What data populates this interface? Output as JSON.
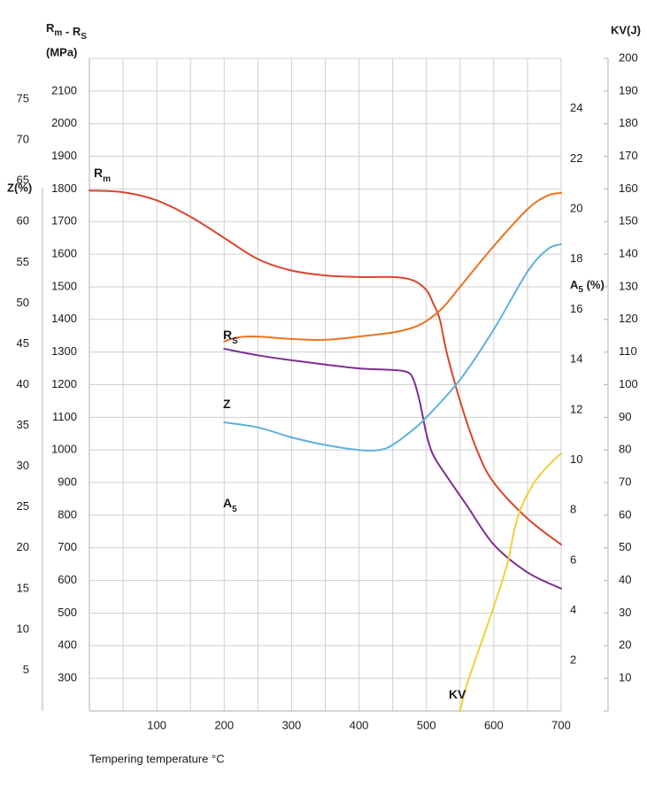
{
  "chart_data": {
    "type": "line",
    "xlabel": "Tempering temperature °C",
    "xlim": [
      0,
      700
    ],
    "x_ticks": [
      "100",
      "200",
      "300",
      "400",
      "500",
      "600",
      "700"
    ],
    "grid": true,
    "axes": {
      "rm_rs": {
        "label_main": "R",
        "label_sub1": "m",
        "label_mid": " - R",
        "label_sub2": "S",
        "label_unit": "(MPa)",
        "range": [
          200,
          2200
        ],
        "ticks": [
          "300",
          "400",
          "500",
          "600",
          "700",
          "800",
          "900",
          "1000",
          "1100",
          "1200",
          "1300",
          "1400",
          "1500",
          "1600",
          "1700",
          "1800",
          "1900",
          "2000",
          "2100"
        ]
      },
      "z": {
        "label": "Z(%)",
        "range": [
          0,
          80
        ],
        "ticks": [
          "5",
          "10",
          "15",
          "20",
          "25",
          "30",
          "35",
          "40",
          "45",
          "50",
          "55",
          "60",
          "65",
          "70",
          "75"
        ]
      },
      "a5": {
        "label_main": "A",
        "label_sub": "5",
        "label_unit": " (%)",
        "range": [
          0,
          26
        ],
        "ticks": [
          "2",
          "4",
          "6",
          "8",
          "10",
          "12",
          "14",
          "16",
          "18",
          "20",
          "22",
          "24"
        ]
      },
      "kv": {
        "label": "KV(J)",
        "range": [
          0,
          200
        ],
        "ticks": [
          "10",
          "20",
          "30",
          "40",
          "50",
          "60",
          "70",
          "80",
          "90",
          "100",
          "110",
          "120",
          "130",
          "140",
          "150",
          "160",
          "170",
          "180",
          "190",
          "200"
        ]
      }
    },
    "series": [
      {
        "name": "Rm",
        "label_main": "R",
        "label_sub": "m",
        "axis": "rm_rs",
        "color": "#d9452b",
        "points": [
          [
            0,
            1795
          ],
          [
            50,
            1790
          ],
          [
            100,
            1765
          ],
          [
            150,
            1715
          ],
          [
            200,
            1650
          ],
          [
            250,
            1585
          ],
          [
            300,
            1550
          ],
          [
            350,
            1535
          ],
          [
            400,
            1530
          ],
          [
            450,
            1530
          ],
          [
            480,
            1520
          ],
          [
            500,
            1490
          ],
          [
            510,
            1450
          ],
          [
            520,
            1400
          ],
          [
            530,
            1300
          ],
          [
            550,
            1150
          ],
          [
            575,
            1000
          ],
          [
            600,
            900
          ],
          [
            650,
            790
          ],
          [
            700,
            710
          ]
        ]
      },
      {
        "name": "Rs",
        "label_main": "R",
        "label_sub": "S",
        "axis": "rm_rs",
        "color": "#7d2f8e",
        "points": [
          [
            200,
            1310
          ],
          [
            250,
            1290
          ],
          [
            300,
            1275
          ],
          [
            350,
            1262
          ],
          [
            400,
            1250
          ],
          [
            450,
            1245
          ],
          [
            470,
            1240
          ],
          [
            480,
            1220
          ],
          [
            490,
            1150
          ],
          [
            500,
            1050
          ],
          [
            510,
            985
          ],
          [
            530,
            920
          ],
          [
            560,
            830
          ],
          [
            600,
            710
          ],
          [
            650,
            625
          ],
          [
            700,
            575
          ]
        ]
      },
      {
        "name": "Z",
        "label_main": "Z",
        "label_sub": "",
        "axis": "z",
        "color": "#e8731f",
        "points": [
          [
            200,
            45.3
          ],
          [
            220,
            45.8
          ],
          [
            250,
            45.9
          ],
          [
            300,
            45.6
          ],
          [
            350,
            45.5
          ],
          [
            400,
            45.9
          ],
          [
            450,
            46.4
          ],
          [
            480,
            47.0
          ],
          [
            500,
            47.8
          ],
          [
            525,
            49.5
          ],
          [
            550,
            52.0
          ],
          [
            600,
            57.0
          ],
          [
            650,
            61.5
          ],
          [
            680,
            63.2
          ],
          [
            700,
            63.5
          ]
        ]
      },
      {
        "name": "A5",
        "label_main": "A",
        "label_sub": "5",
        "axis": "a5",
        "color": "#5fb0dc",
        "points": [
          [
            200,
            11.5
          ],
          [
            250,
            11.3
          ],
          [
            300,
            10.9
          ],
          [
            350,
            10.6
          ],
          [
            400,
            10.4
          ],
          [
            430,
            10.4
          ],
          [
            450,
            10.6
          ],
          [
            480,
            11.2
          ],
          [
            500,
            11.7
          ],
          [
            550,
            13.2
          ],
          [
            600,
            15.2
          ],
          [
            650,
            17.5
          ],
          [
            680,
            18.4
          ],
          [
            700,
            18.6
          ]
        ]
      },
      {
        "name": "KV",
        "label_main": "KV",
        "label_sub": "",
        "axis": "kv",
        "color": "#f2cf3c",
        "points": [
          [
            550,
            0
          ],
          [
            560,
            8
          ],
          [
            580,
            20
          ],
          [
            600,
            32
          ],
          [
            620,
            45
          ],
          [
            630,
            55
          ],
          [
            640,
            62
          ],
          [
            660,
            70
          ],
          [
            680,
            75
          ],
          [
            700,
            79
          ]
        ]
      }
    ]
  }
}
